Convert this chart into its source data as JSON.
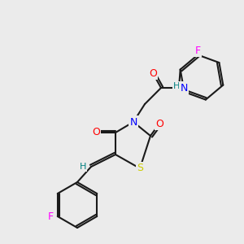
{
  "bg_color": "#ebebeb",
  "bond_color": "#1a1a1a",
  "atom_colors": {
    "O": "#ff0000",
    "N": "#0000ff",
    "S": "#cccc00",
    "F_top": "#ff00ff",
    "F_bot": "#ff00ff",
    "H": "#008080"
  },
  "font_size": 9,
  "bond_width": 1.5
}
